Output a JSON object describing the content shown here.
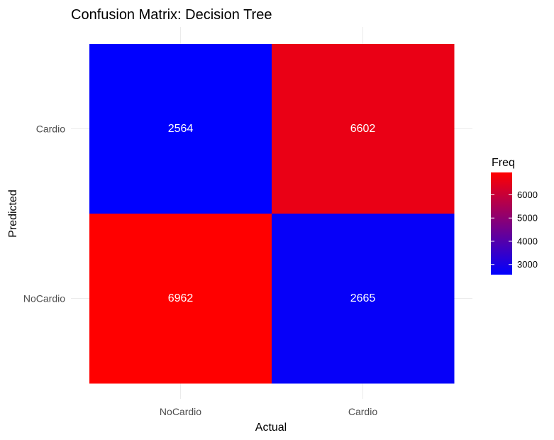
{
  "chart_data": {
    "type": "heatmap",
    "title": "Confusion Matrix: Decision Tree",
    "xlabel": "Actual",
    "ylabel": "Predicted",
    "x_categories": [
      "NoCardio",
      "Cardio"
    ],
    "y_categories": [
      "NoCardio",
      "Cardio"
    ],
    "cells": [
      {
        "x": "NoCardio",
        "y": "Cardio",
        "value": 2564
      },
      {
        "x": "Cardio",
        "y": "Cardio",
        "value": 6602
      },
      {
        "x": "NoCardio",
        "y": "NoCardio",
        "value": 6962
      },
      {
        "x": "Cardio",
        "y": "NoCardio",
        "value": 2665
      }
    ],
    "legend": {
      "title": "Freq",
      "placement": "right",
      "ticks": [
        3000,
        4000,
        5000,
        6000
      ],
      "range": [
        2564,
        6962
      ],
      "low_color": "#0000ff",
      "high_color": "#ff0000"
    },
    "grid": true
  }
}
